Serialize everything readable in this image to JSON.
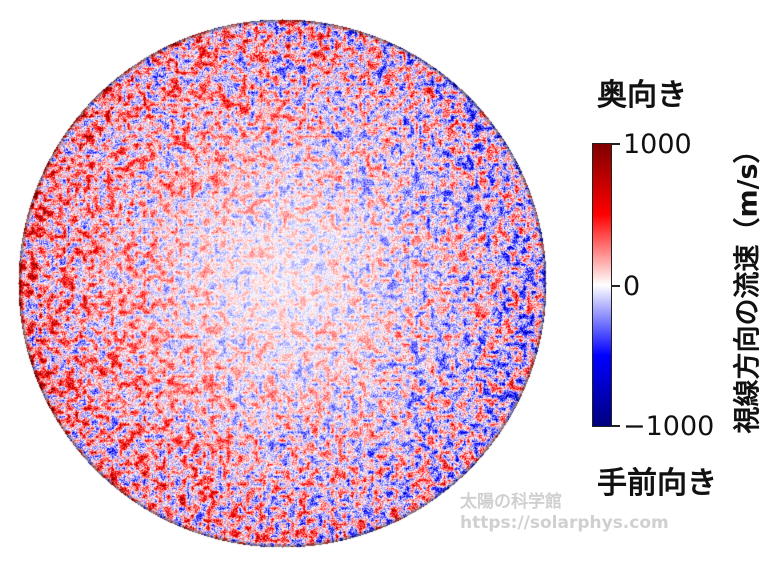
{
  "labels": {
    "away": "奥向き",
    "toward": "手前向き"
  },
  "colorbar": {
    "title": "視線方向の流速（m/s）",
    "ticks": [
      "1000",
      "0",
      "−1000"
    ],
    "range": [
      -1000,
      1000
    ],
    "colors": {
      "max": "#7f0000",
      "positive": "#ff0000",
      "zero": "#ffffff",
      "negative": "#0000ff",
      "min": "#00007f"
    }
  },
  "watermark": {
    "name": "太陽の科学館",
    "url": "https://solarphys.com"
  }
}
